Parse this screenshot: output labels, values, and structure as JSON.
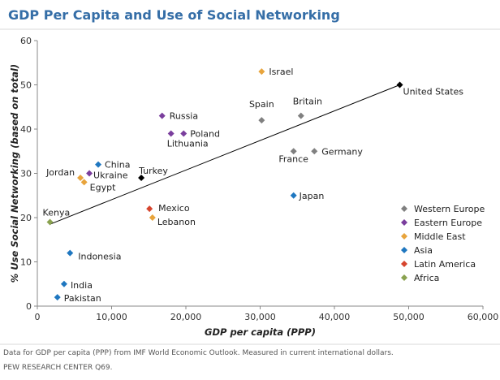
{
  "chart_data": {
    "type": "scatter",
    "title": "GDP Per Capita and Use of Social Networking",
    "xlabel": "GDP per capita (PPP)",
    "ylabel": "% Use Social Networking (based on total)",
    "xlim": [
      0,
      60000
    ],
    "ylim": [
      0,
      60
    ],
    "x_ticks": [
      "0",
      "10,000",
      "20,000",
      "30,000",
      "40,000",
      "50,000",
      "60,000"
    ],
    "y_ticks": [
      "0",
      "10",
      "20",
      "30",
      "40",
      "50",
      "60"
    ],
    "grid": false,
    "legend_position": "bottom-right",
    "regions": [
      {
        "name": "Western Europe",
        "color": "#808080"
      },
      {
        "name": "Eastern Europe",
        "color": "#7a3e9d"
      },
      {
        "name": "Middle East",
        "color": "#e8a43c"
      },
      {
        "name": "Asia",
        "color": "#1f77c0"
      },
      {
        "name": "Latin America",
        "color": "#d6452e"
      },
      {
        "name": "Africa",
        "color": "#8aa250"
      }
    ],
    "points": [
      {
        "label": "Israel",
        "region": "Middle East",
        "x": 30200,
        "y": 53
      },
      {
        "label": "United States",
        "region": "United States",
        "color": "#000000",
        "x": 48800,
        "y": 50
      },
      {
        "label": "Spain",
        "region": "Western Europe",
        "x": 30200,
        "y": 42
      },
      {
        "label": "Britain",
        "region": "Western Europe",
        "x": 35500,
        "y": 43
      },
      {
        "label": "Russia",
        "region": "Eastern Europe",
        "x": 16800,
        "y": 43
      },
      {
        "label": "Poland",
        "region": "Eastern Europe",
        "x": 19700,
        "y": 39
      },
      {
        "label": "Lithuania",
        "region": "Eastern Europe",
        "x": 18000,
        "y": 39
      },
      {
        "label": "France",
        "region": "Western Europe",
        "x": 34500,
        "y": 35
      },
      {
        "label": "Germany",
        "region": "Western Europe",
        "x": 37300,
        "y": 35
      },
      {
        "label": "China",
        "region": "Asia",
        "x": 8200,
        "y": 32
      },
      {
        "label": "Turkey",
        "region": "Turkey",
        "color": "#000000",
        "x": 14000,
        "y": 29
      },
      {
        "label": "Jordan",
        "region": "Middle East",
        "x": 5800,
        "y": 29
      },
      {
        "label": "Ukraine",
        "region": "Eastern Europe",
        "x": 7000,
        "y": 30
      },
      {
        "label": "Egypt",
        "region": "Middle East",
        "x": 6300,
        "y": 28
      },
      {
        "label": "Japan",
        "region": "Asia",
        "x": 34500,
        "y": 25
      },
      {
        "label": "Mexico",
        "region": "Latin America",
        "x": 15100,
        "y": 22
      },
      {
        "label": "Lebanon",
        "region": "Middle East",
        "x": 15500,
        "y": 20
      },
      {
        "label": "Kenya",
        "region": "Africa",
        "x": 1700,
        "y": 19
      },
      {
        "label": "Indonesia",
        "region": "Asia",
        "x": 4400,
        "y": 12
      },
      {
        "label": "India",
        "region": "Asia",
        "x": 3600,
        "y": 5
      },
      {
        "label": "Pakistan",
        "region": "Asia",
        "x": 2700,
        "y": 2
      }
    ],
    "trendline": {
      "x": [
        1700,
        48800
      ],
      "y": [
        18.5,
        50
      ]
    }
  },
  "footnote": "Data for GDP per capita (PPP)  from IMF World Economic Outlook.  Measured in current international dollars.",
  "source": "PEW RESEARCH CENTER  Q69."
}
